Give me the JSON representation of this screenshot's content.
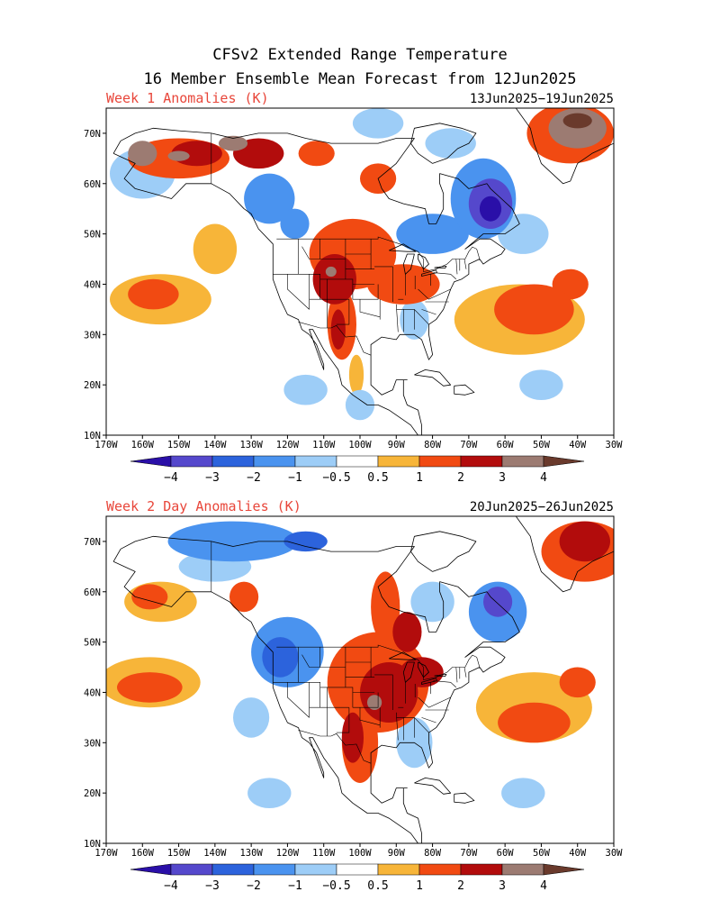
{
  "title": {
    "line1": "CFSv2 Extended Range Temperature",
    "line2": "16 Member Ensemble Mean Forecast from 12Jun2025"
  },
  "colors": {
    "c_lt_m4": "#2a0fa8",
    "c_m4_m3": "#5548cc",
    "c_m3_m2": "#2c63dc",
    "c_m2_m1": "#4a93ef",
    "c_m1_m05": "#9dcdf7",
    "c_neutral": "#ffffff",
    "c_05_1": "#f7b539",
    "c_1_2": "#f14a12",
    "c_2_3": "#b20c0c",
    "c_3_4": "#9c7b72",
    "c_gt_4": "#6a3a2c",
    "label_red": "#e8463a"
  },
  "colorbar": {
    "labels": [
      "−4",
      "−3",
      "−2",
      "−1",
      "−0.5",
      "0.5",
      "1",
      "2",
      "3",
      "4"
    ]
  },
  "lon_labels": [
    "170W",
    "160W",
    "150W",
    "140W",
    "130W",
    "120W",
    "110W",
    "100W",
    "90W",
    "80W",
    "70W",
    "60W",
    "50W",
    "40W",
    "30W"
  ],
  "lat_labels": [
    "70N",
    "60N",
    "50N",
    "40N",
    "30N",
    "20N",
    "10N"
  ],
  "panels": [
    {
      "label": "Week 1 Anomalies (K)",
      "dates": "13Jun2025−19Jun2025",
      "anomalies": [
        {
          "lon": -150,
          "lat": 65,
          "rx": 14,
          "ry": 4,
          "v": 1.2
        },
        {
          "lon": -145,
          "lat": 66,
          "rx": 7,
          "ry": 2.5,
          "v": 2.5
        },
        {
          "lon": -150,
          "lat": 65.5,
          "rx": 3,
          "ry": 1,
          "v": 3.3
        },
        {
          "lon": -128,
          "lat": 66,
          "rx": 7,
          "ry": 3,
          "v": 2.2
        },
        {
          "lon": -160,
          "lat": 66,
          "rx": 4,
          "ry": 2.5,
          "v": 3.5
        },
        {
          "lon": -135,
          "lat": 68,
          "rx": 4,
          "ry": 1.5,
          "v": 3.4
        },
        {
          "lon": -112,
          "lat": 66,
          "rx": 5,
          "ry": 2.5,
          "v": 1.5
        },
        {
          "lon": -95,
          "lat": 61,
          "rx": 5,
          "ry": 3,
          "v": 1.0
        },
        {
          "lon": -102,
          "lat": 46,
          "rx": 12,
          "ry": 7,
          "v": 1.2
        },
        {
          "lon": -107,
          "lat": 41,
          "rx": 6,
          "ry": 5,
          "v": 2.3
        },
        {
          "lon": -108,
          "lat": 42.5,
          "rx": 1.5,
          "ry": 1,
          "v": 3.2
        },
        {
          "lon": -88,
          "lat": 40,
          "rx": 10,
          "ry": 4,
          "v": 1.3
        },
        {
          "lon": -105,
          "lat": 32,
          "rx": 4,
          "ry": 7,
          "v": 1.4
        },
        {
          "lon": -106,
          "lat": 31,
          "rx": 2,
          "ry": 4,
          "v": 2.2
        },
        {
          "lon": -101,
          "lat": 22,
          "rx": 2,
          "ry": 4,
          "v": 0.7
        },
        {
          "lon": -155,
          "lat": 37,
          "rx": 14,
          "ry": 5,
          "v": 0.7
        },
        {
          "lon": -157,
          "lat": 38,
          "rx": 7,
          "ry": 3,
          "v": 1.3
        },
        {
          "lon": -140,
          "lat": 47,
          "rx": 6,
          "ry": 5,
          "v": 0.7
        },
        {
          "lon": -56,
          "lat": 33,
          "rx": 18,
          "ry": 7,
          "v": 0.8
        },
        {
          "lon": -52,
          "lat": 35,
          "rx": 11,
          "ry": 5,
          "v": 1.4
        },
        {
          "lon": -42,
          "lat": 40,
          "rx": 5,
          "ry": 3,
          "v": 1.3
        },
        {
          "lon": -42,
          "lat": 70,
          "rx": 12,
          "ry": 6,
          "v": 1.8
        },
        {
          "lon": -40,
          "lat": 71,
          "rx": 8,
          "ry": 4,
          "v": 3.0
        },
        {
          "lon": -40,
          "lat": 72.5,
          "rx": 4,
          "ry": 1.5,
          "v": 4.2
        },
        {
          "lon": -66,
          "lat": 57,
          "rx": 9,
          "ry": 8,
          "v": -1.4
        },
        {
          "lon": -64,
          "lat": 56,
          "rx": 6,
          "ry": 5,
          "v": -3.0
        },
        {
          "lon": -64,
          "lat": 55,
          "rx": 3,
          "ry": 2.5,
          "v": -4.2
        },
        {
          "lon": -80,
          "lat": 50,
          "rx": 10,
          "ry": 4,
          "v": -1.2
        },
        {
          "lon": -125,
          "lat": 57,
          "rx": 7,
          "ry": 5,
          "v": -1.0
        },
        {
          "lon": -118,
          "lat": 52,
          "rx": 4,
          "ry": 3,
          "v": -1.8
        },
        {
          "lon": -160,
          "lat": 62,
          "rx": 9,
          "ry": 5,
          "v": -0.8
        },
        {
          "lon": -85,
          "lat": 33,
          "rx": 4,
          "ry": 4,
          "v": -0.8
        },
        {
          "lon": -50,
          "lat": 20,
          "rx": 6,
          "ry": 3,
          "v": -0.7
        },
        {
          "lon": -115,
          "lat": 19,
          "rx": 6,
          "ry": 3,
          "v": -0.7
        },
        {
          "lon": -100,
          "lat": 16,
          "rx": 4,
          "ry": 3,
          "v": -0.7
        },
        {
          "lon": -55,
          "lat": 50,
          "rx": 7,
          "ry": 4,
          "v": -0.8
        },
        {
          "lon": -75,
          "lat": 68,
          "rx": 7,
          "ry": 3,
          "v": -0.9
        },
        {
          "lon": -95,
          "lat": 72,
          "rx": 7,
          "ry": 3,
          "v": -0.9
        }
      ]
    },
    {
      "label": "Week 2 Day Anomalies (K)",
      "dates": "20Jun2025−26Jun2025",
      "anomalies": [
        {
          "lon": -95,
          "lat": 42,
          "rx": 14,
          "ry": 10,
          "v": 1.2
        },
        {
          "lon": -92,
          "lat": 40,
          "rx": 8,
          "ry": 6,
          "v": 2.3
        },
        {
          "lon": -96,
          "lat": 38,
          "rx": 2,
          "ry": 1.5,
          "v": 3.3
        },
        {
          "lon": -83,
          "lat": 44,
          "rx": 6,
          "ry": 3,
          "v": 2.2
        },
        {
          "lon": -100,
          "lat": 30,
          "rx": 5,
          "ry": 8,
          "v": 1.5
        },
        {
          "lon": -102,
          "lat": 31,
          "rx": 3,
          "ry": 5,
          "v": 2.2
        },
        {
          "lon": -93,
          "lat": 57,
          "rx": 4,
          "ry": 7,
          "v": 1.6
        },
        {
          "lon": -87,
          "lat": 52,
          "rx": 4,
          "ry": 4,
          "v": 2.2
        },
        {
          "lon": -158,
          "lat": 42,
          "rx": 14,
          "ry": 5,
          "v": 0.8
        },
        {
          "lon": -158,
          "lat": 41,
          "rx": 9,
          "ry": 3,
          "v": 1.4
        },
        {
          "lon": -155,
          "lat": 58,
          "rx": 10,
          "ry": 4,
          "v": 0.8
        },
        {
          "lon": -158,
          "lat": 59,
          "rx": 5,
          "ry": 2.5,
          "v": 1.4
        },
        {
          "lon": -132,
          "lat": 59,
          "rx": 4,
          "ry": 3,
          "v": 1.3
        },
        {
          "lon": -52,
          "lat": 37,
          "rx": 16,
          "ry": 7,
          "v": 0.8
        },
        {
          "lon": -52,
          "lat": 34,
          "rx": 10,
          "ry": 4,
          "v": 1.4
        },
        {
          "lon": -40,
          "lat": 42,
          "rx": 5,
          "ry": 3,
          "v": 1.3
        },
        {
          "lon": -38,
          "lat": 68,
          "rx": 12,
          "ry": 6,
          "v": 1.5
        },
        {
          "lon": -38,
          "lat": 70,
          "rx": 7,
          "ry": 4,
          "v": 2.4
        },
        {
          "lon": -120,
          "lat": 48,
          "rx": 10,
          "ry": 7,
          "v": -1.3
        },
        {
          "lon": -122,
          "lat": 47,
          "rx": 5,
          "ry": 4,
          "v": -2.2
        },
        {
          "lon": -62,
          "lat": 56,
          "rx": 8,
          "ry": 6,
          "v": -1.5
        },
        {
          "lon": -62,
          "lat": 58,
          "rx": 4,
          "ry": 3,
          "v": -3.0
        },
        {
          "lon": -135,
          "lat": 70,
          "rx": 18,
          "ry": 4,
          "v": -1.2
        },
        {
          "lon": -115,
          "lat": 70,
          "rx": 6,
          "ry": 2,
          "v": -2.2
        },
        {
          "lon": -140,
          "lat": 65,
          "rx": 10,
          "ry": 3,
          "v": -0.8
        },
        {
          "lon": -80,
          "lat": 58,
          "rx": 6,
          "ry": 4,
          "v": -0.9
        },
        {
          "lon": -85,
          "lat": 30,
          "rx": 5,
          "ry": 5,
          "v": -0.7
        },
        {
          "lon": -130,
          "lat": 35,
          "rx": 5,
          "ry": 4,
          "v": -0.8
        },
        {
          "lon": -125,
          "lat": 20,
          "rx": 6,
          "ry": 3,
          "v": -0.7
        },
        {
          "lon": -55,
          "lat": 20,
          "rx": 6,
          "ry": 3,
          "v": -0.7
        }
      ]
    }
  ]
}
